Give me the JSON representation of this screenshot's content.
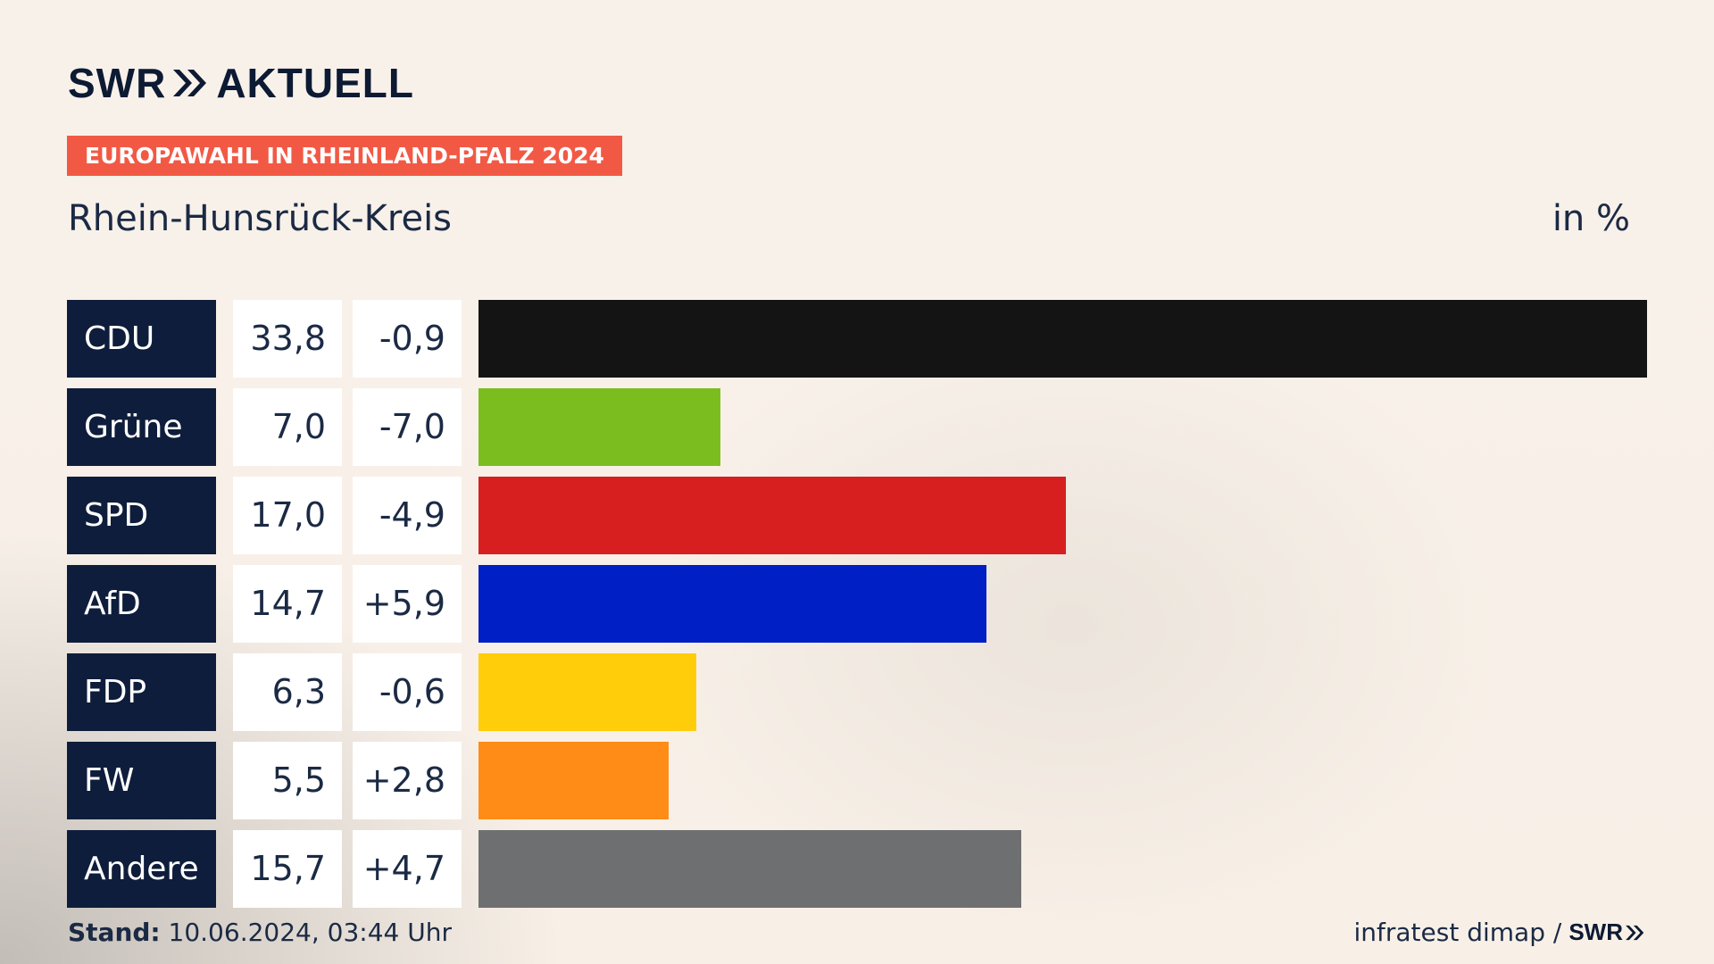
{
  "header": {
    "logo_text": "SWR",
    "logo_text_2": "AKTUELL",
    "badge": "EUROPAWAHL IN RHEINLAND-PFALZ 2024",
    "region": "Rhein-Hunsrück-Kreis",
    "unit": "in %"
  },
  "footer": {
    "stand_label": "Stand:",
    "stand_value": "10.06.2024, 03:44 Uhr",
    "source": "infratest dimap /",
    "source_logo": "SWR"
  },
  "colors": {
    "badge": "#f25945",
    "party_box": "#0e1d3b"
  },
  "chart_data": {
    "type": "bar",
    "orientation": "horizontal",
    "categories": [
      "CDU",
      "Grüne",
      "SPD",
      "AfD",
      "FDP",
      "FW",
      "Andere"
    ],
    "values": [
      33.8,
      7.0,
      17.0,
      14.7,
      6.3,
      5.5,
      15.7
    ],
    "value_labels": [
      "33,8",
      "7,0",
      "17,0",
      "14,7",
      "6,3",
      "5,5",
      "15,7"
    ],
    "diff_labels": [
      "-0,9",
      "-7,0",
      "-4,9",
      "+5,9",
      "-0,6",
      "+2,8",
      "+4,7"
    ],
    "diff_values": [
      -0.9,
      -7.0,
      -4.9,
      5.9,
      -0.6,
      2.8,
      4.7
    ],
    "bar_colors": [
      "#141414",
      "#7bbd1e",
      "#d71f1f",
      "#001fc4",
      "#ffcd0a",
      "#ff8c17",
      "#6e6f71"
    ],
    "xlim": [
      0,
      33.8
    ],
    "grid": false
  }
}
